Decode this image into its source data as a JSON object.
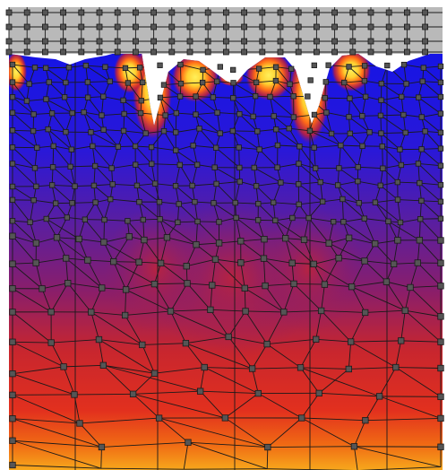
{
  "colors": {
    "background": "#ffffff",
    "platen": "#b9b9b9",
    "mesh_line": "#1a1a1a",
    "node_fill": "#555555",
    "field_low": "#1414e6",
    "field_mid": "#6a1e8c",
    "field_high": "#d42a24",
    "field_peak": "#ffe838"
  },
  "icons": {
    "node_marker": "square-node-icon"
  }
}
